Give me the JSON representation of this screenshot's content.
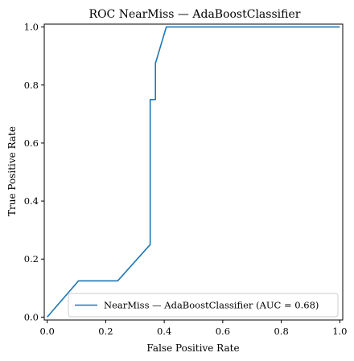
{
  "chart_data": {
    "type": "line",
    "title": "ROC NearMiss — AdaBoostClassifier",
    "xlabel": "False Positive Rate",
    "ylabel": "True Positive Rate",
    "xlim": [
      -0.01,
      1.01
    ],
    "ylim": [
      -0.01,
      1.01
    ],
    "xticks": [
      "0.0",
      "0.2",
      "0.4",
      "0.6",
      "0.8",
      "1.0"
    ],
    "yticks": [
      "0.0",
      "0.2",
      "0.4",
      "0.6",
      "0.8",
      "1.0"
    ],
    "xtick_values": [
      0.0,
      0.2,
      0.4,
      0.6,
      0.8,
      1.0
    ],
    "ytick_values": [
      0.0,
      0.2,
      0.4,
      0.6,
      0.8,
      1.0
    ],
    "grid": false,
    "legend_position": "lower-right",
    "series": [
      {
        "name": "NearMiss — AdaBoostClassifier (AUC = 0.68)",
        "color": "#1f77b4",
        "x": [
          0.0,
          0.107,
          0.241,
          0.352,
          0.352,
          0.37,
          0.37,
          0.407,
          0.407,
          1.0
        ],
        "y": [
          0.0,
          0.125,
          0.125,
          0.25,
          0.75,
          0.75,
          0.875,
          1.0,
          1.0,
          1.0
        ]
      }
    ]
  }
}
